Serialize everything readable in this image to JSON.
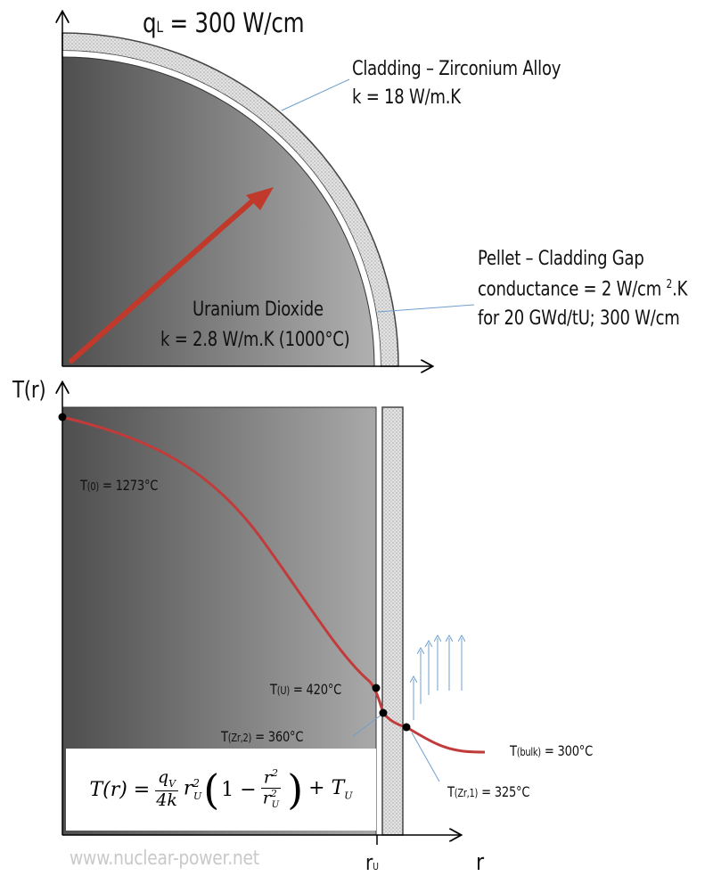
{
  "top": {
    "linear_power": {
      "symbol": "q",
      "sub": "L",
      "rest": " = 300 W/cm"
    },
    "cladding": {
      "line1": "Cladding – Zirconium Alloy",
      "line2": "k = 18 W/m.K"
    },
    "gap": {
      "line1": "Pellet – Cladding Gap",
      "line2a": "conductance = 2 W/cm ",
      "line2sup": "2",
      "line2b": ".K",
      "line3": "for 20 GWd/tU; 300 W/cm"
    },
    "fuel": {
      "line1": "Uranium Dioxide",
      "line2": "k = 2.8 W/m.K (1000°C)"
    }
  },
  "bottom": {
    "y_axis_label": "T(r)",
    "x_axis_label": "r",
    "r_tick": {
      "main": "r",
      "sub": "U"
    },
    "t0": {
      "main": "T",
      "sub": "(0)",
      "rest": " = 1273°C"
    },
    "tu": {
      "main": "T",
      "sub": "(U)",
      "rest": " = 420°C"
    },
    "tzr2": {
      "main": "T",
      "sub": "(Zr,2)",
      "rest": " = 360°C"
    },
    "tzr1": {
      "main": "T",
      "sub": "(Zr,1)",
      "rest": " = 325°C"
    },
    "tbulk": {
      "main": "T",
      "sub": "(bulk)",
      "rest": " = 300°C"
    },
    "formula": {
      "lhs": "T(r) =",
      "num1": "q",
      "num1_sub": "V",
      "den1": "4k",
      "rU": "r",
      "rU_sub": "U",
      "sq": "2",
      "one_minus": "1 −",
      "num2": "r",
      "den2": "r",
      "tail": "+ T",
      "tail_sub": "U"
    }
  },
  "watermark": "www.nuclear-power.net",
  "colors": {
    "curve": "#b83a3a",
    "arrow": "#c0392b",
    "flux_arrows": "#6f9fcf",
    "cladding_fill": "#d6d6d6",
    "fuel_dark": "#555555",
    "fuel_light": "#b5b5b5"
  }
}
